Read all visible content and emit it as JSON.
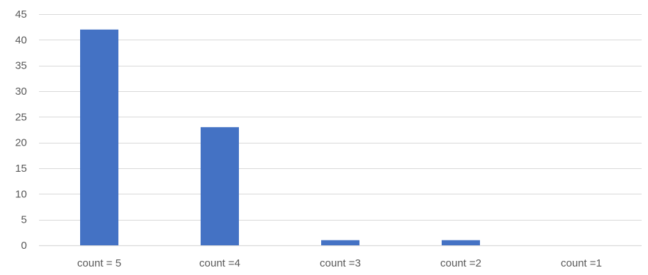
{
  "chart_data": {
    "type": "bar",
    "title": "",
    "xlabel": "",
    "ylabel": "",
    "categories": [
      "count = 5",
      "count =4",
      "count =3",
      "count =2",
      "count =1"
    ],
    "values": [
      42,
      23,
      1,
      1,
      0
    ],
    "ylim": [
      0,
      45
    ],
    "yticks": [
      0,
      5,
      10,
      15,
      20,
      25,
      30,
      35,
      40,
      45
    ],
    "grid": true,
    "legend": "none",
    "bar_color": "#4472c4",
    "grid_color": "#d9d9d9",
    "text_color": "#595959"
  }
}
